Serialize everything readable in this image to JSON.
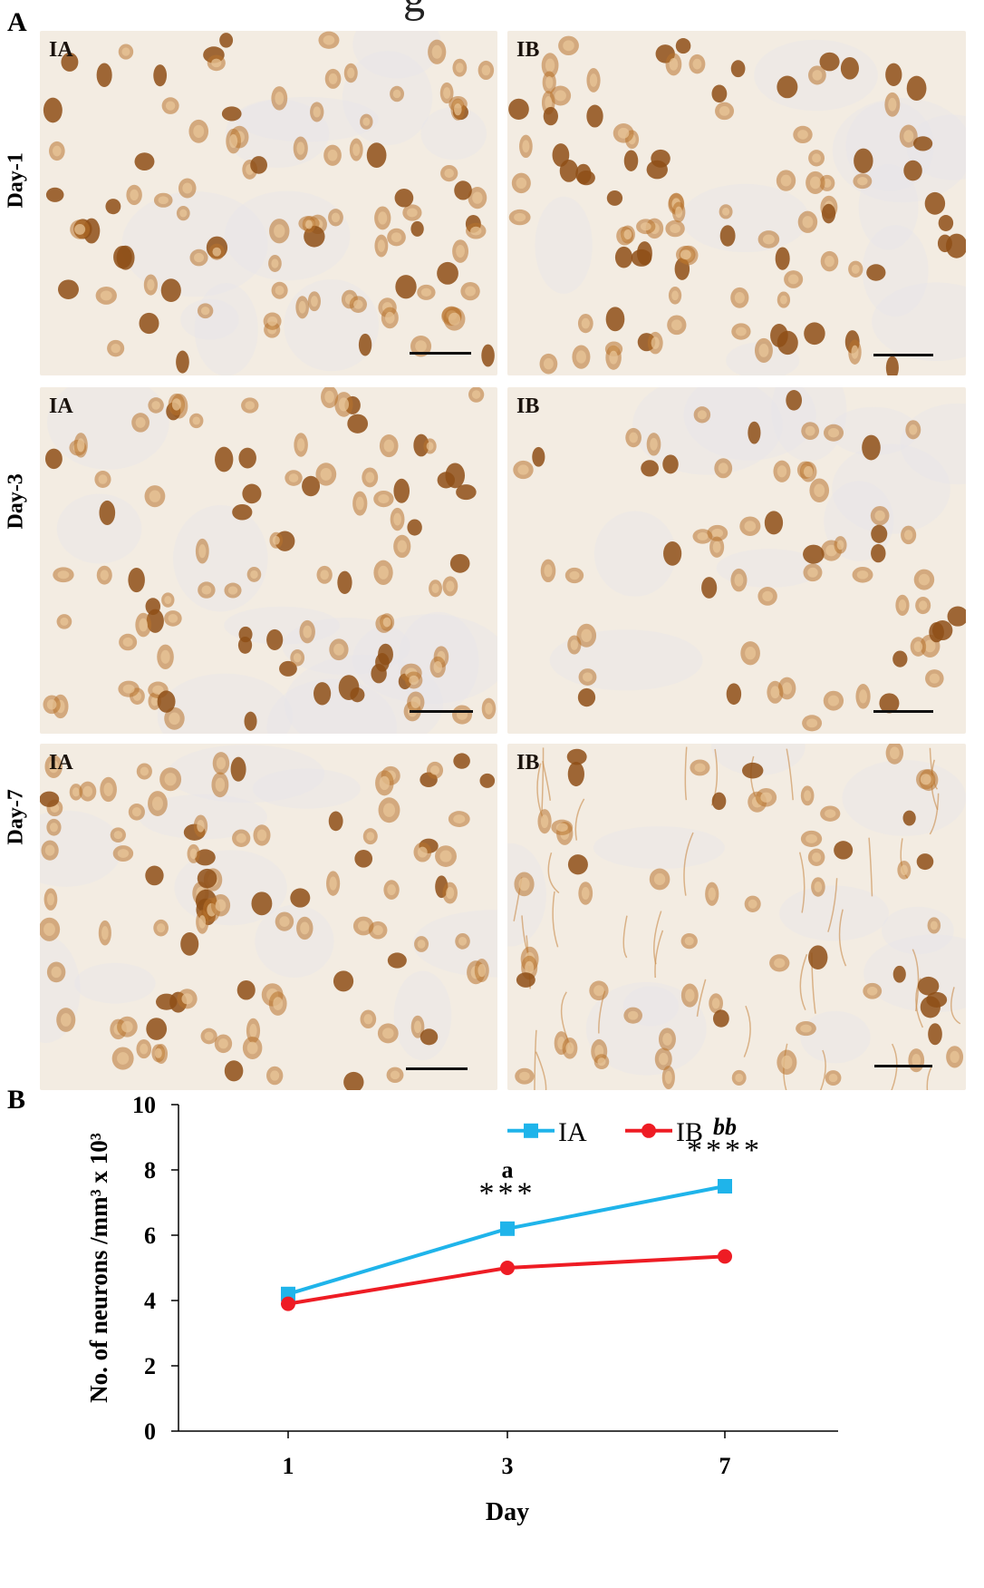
{
  "panels": {
    "a_letter": "A",
    "b_letter": "B",
    "top_cut_glyph": "g"
  },
  "micrographs": {
    "rows": [
      {
        "label": "Day-1",
        "left_tag": "IA",
        "right_tag": "IB"
      },
      {
        "label": "Day-3",
        "left_tag": "IA",
        "right_tag": "IB"
      },
      {
        "label": "Day-7",
        "left_tag": "IA",
        "right_tag": "IB"
      }
    ],
    "tissue_color": "#f3ece2",
    "stain_color": "#b8732b",
    "stain_dark": "#8e4f16"
  },
  "chart_data": {
    "type": "line",
    "x": [
      "1",
      "3",
      "7"
    ],
    "xlabel": "Day",
    "ylabel": "No. of neurons /mm³ x 10³",
    "ylim": [
      0,
      10
    ],
    "yticks": [
      "0",
      "2",
      "4",
      "6",
      "8",
      "10"
    ],
    "grid": false,
    "legend_position": "top-right",
    "series": [
      {
        "name": "IA",
        "color": "#1fb4ea",
        "marker": "square",
        "values": [
          4.2,
          6.2,
          7.5
        ],
        "errors": [
          0.1,
          0.18,
          0.2
        ]
      },
      {
        "name": "IB",
        "color": "#ee1c24",
        "marker": "circle",
        "values": [
          3.9,
          5.0,
          5.35
        ],
        "errors": [
          0.1,
          0.1,
          0.15
        ]
      }
    ],
    "annotations": [
      {
        "x": "3",
        "letter": "a",
        "stars": "***"
      },
      {
        "x": "7",
        "letter": "bb",
        "stars": "****"
      }
    ]
  }
}
